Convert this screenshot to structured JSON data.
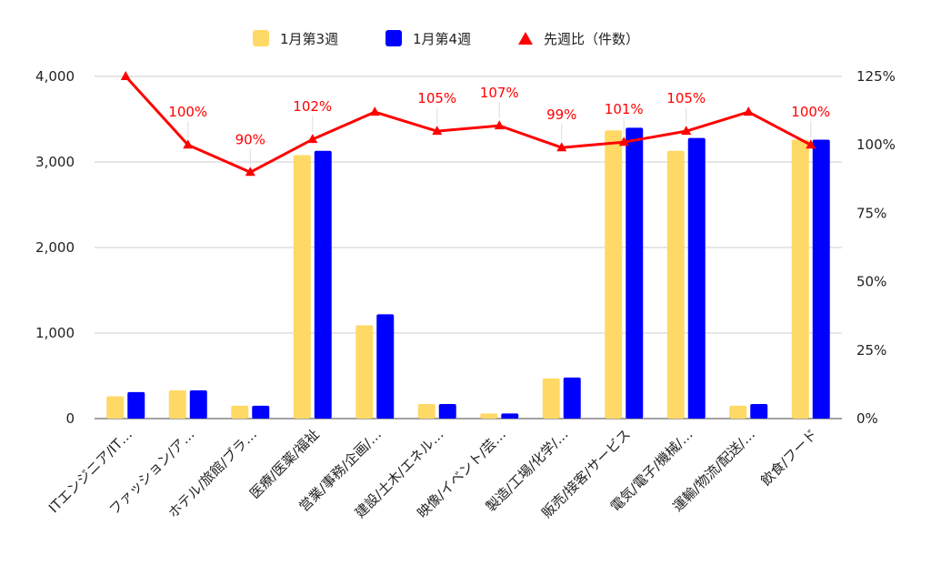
{
  "chart_data": {
    "type": "bar",
    "categories": [
      "ITエンジニア/IT…",
      "ファッション/ア…",
      "ホテル/旅館/ブラ…",
      "医療/医薬/福祉",
      "営業/事務/企画/…",
      "建設/土木/エネル…",
      "映像/イベント/芸…",
      "製造/工場/化学/…",
      "販売/接客/サービス",
      "電気/電子/機械/…",
      "運輸/物流/配送/…",
      "飲食/フード"
    ],
    "series": [
      {
        "name": "1月第3週",
        "type": "bar",
        "axis": "left",
        "color": "#ffd966",
        "values": [
          260,
          330,
          150,
          3080,
          1090,
          170,
          60,
          470,
          3370,
          3130,
          150,
          3260
        ]
      },
      {
        "name": "1月第4週",
        "type": "bar",
        "axis": "left",
        "color": "#0000ff",
        "values": [
          310,
          330,
          150,
          3130,
          1220,
          170,
          60,
          480,
          3400,
          3280,
          170,
          3260
        ]
      },
      {
        "name": "先週比（件数）",
        "type": "line",
        "axis": "right",
        "color": "#ff0000",
        "values": [
          125,
          100,
          90,
          102,
          112,
          105,
          107,
          99,
          101,
          105,
          112,
          100
        ],
        "labels": [
          "",
          "100%",
          "90%",
          "102%",
          "",
          "105%",
          "107%",
          "99%",
          "101%",
          "105%",
          "",
          "100%"
        ]
      }
    ],
    "y_left": {
      "min": 0,
      "max": 4000,
      "ticks": [
        "0",
        "1,000",
        "2,000",
        "3,000",
        "4,000"
      ]
    },
    "y_right": {
      "min": 0,
      "max": 125,
      "ticks": [
        "0%",
        "25%",
        "50%",
        "75%",
        "100%",
        "125%"
      ]
    },
    "grid": true,
    "legend_position": "top"
  }
}
